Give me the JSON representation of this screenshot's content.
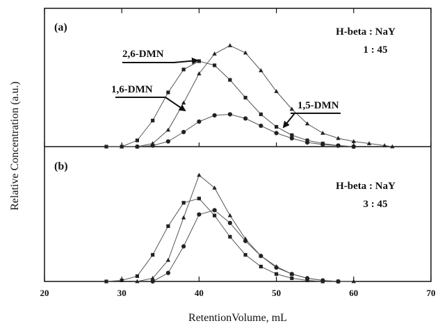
{
  "chart_data": {
    "type": "line",
    "xlabel": "RetentionVolume, mL",
    "ylabel": "Relative Concentration (a.u.)",
    "xlim": [
      20,
      70
    ],
    "xticks": [
      "20",
      "30",
      "40",
      "50",
      "60",
      "70"
    ],
    "grid": false,
    "panels": [
      {
        "label": "(a)",
        "annotation_line1": "H-beta : NaY",
        "annotation_line2": "1 : 45",
        "series": [
          {
            "name": "2,6-DMN",
            "marker": "square",
            "x": [
              28,
              30,
              32,
              34,
              36,
              38,
              40,
              42,
              44,
              46,
              48,
              50,
              52,
              54,
              56,
              58,
              60
            ],
            "y": [
              0,
              0,
              0.06,
              0.25,
              0.52,
              0.74,
              0.82,
              0.78,
              0.64,
              0.47,
              0.31,
              0.19,
              0.11,
              0.06,
              0.03,
              0.01,
              0
            ]
          },
          {
            "name": "1,6-DMN",
            "marker": "triangle",
            "x": [
              30,
              32,
              34,
              36,
              38,
              40,
              42,
              44,
              46,
              48,
              50,
              52,
              54,
              56,
              58,
              60,
              62,
              64,
              65
            ],
            "y": [
              0,
              0,
              0.03,
              0.16,
              0.42,
              0.7,
              0.89,
              0.97,
              0.9,
              0.73,
              0.53,
              0.36,
              0.22,
              0.13,
              0.08,
              0.05,
              0.03,
              0.01,
              0
            ]
          },
          {
            "name": "1,5-DMN",
            "marker": "circle",
            "x": [
              32,
              34,
              36,
              38,
              40,
              42,
              44,
              46,
              48,
              50,
              52,
              54,
              56,
              58,
              60
            ],
            "y": [
              0,
              0.01,
              0.05,
              0.14,
              0.24,
              0.3,
              0.31,
              0.27,
              0.2,
              0.13,
              0.08,
              0.04,
              0.02,
              0.01,
              0
            ]
          }
        ],
        "callouts": [
          {
            "text": "2,6-DMN",
            "series": "2,6-DMN"
          },
          {
            "text": "1,6-DMN",
            "series": "1,6-DMN"
          },
          {
            "text": "1,5-DMN",
            "series": "1,5-DMN"
          }
        ]
      },
      {
        "label": "(b)",
        "annotation_line1": "H-beta : NaY",
        "annotation_line2": "3 : 45",
        "series": [
          {
            "name": "2,6-DMN",
            "marker": "square",
            "x": [
              28,
              30,
              32,
              34,
              36,
              38,
              40,
              42,
              44,
              46,
              48,
              50,
              52,
              54,
              56,
              58
            ],
            "y": [
              0,
              0.01,
              0.05,
              0.25,
              0.52,
              0.74,
              0.78,
              0.62,
              0.42,
              0.25,
              0.14,
              0.07,
              0.03,
              0.01,
              0,
              0
            ]
          },
          {
            "name": "1,6-DMN",
            "marker": "triangle",
            "x": [
              32,
              34,
              36,
              38,
              40,
              42,
              44,
              46,
              48,
              50,
              52,
              54,
              56,
              58,
              60
            ],
            "y": [
              0,
              0.03,
              0.2,
              0.6,
              1.0,
              0.88,
              0.62,
              0.4,
              0.24,
              0.14,
              0.07,
              0.03,
              0.01,
              0,
              0
            ]
          },
          {
            "name": "1,5-DMN",
            "marker": "circle",
            "x": [
              34,
              36,
              38,
              40,
              42,
              44,
              46,
              48,
              50,
              52,
              54,
              56,
              58
            ],
            "y": [
              0,
              0.08,
              0.33,
              0.63,
              0.67,
              0.55,
              0.38,
              0.24,
              0.13,
              0.07,
              0.03,
              0.01,
              0
            ]
          }
        ]
      }
    ]
  }
}
